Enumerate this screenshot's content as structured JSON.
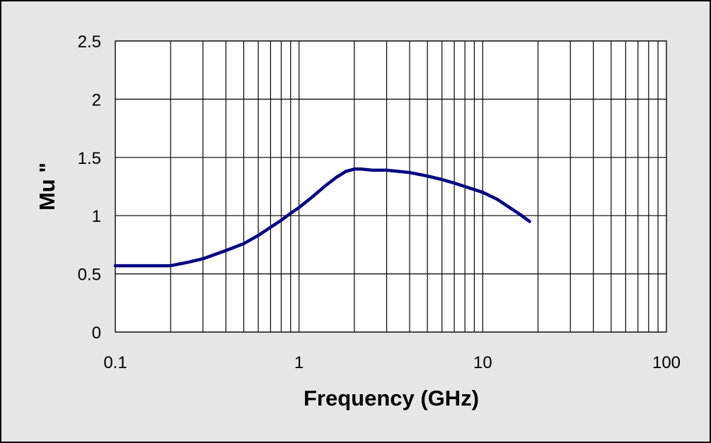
{
  "chart_data": {
    "type": "line",
    "xlabel": "Frequency (GHz)",
    "ylabel": "Mu \"",
    "x_scale": "log",
    "xlim": [
      0.1,
      100
    ],
    "ylim": [
      0,
      2.5
    ],
    "x_ticks": [
      {
        "value": 0.1,
        "label": "0.1"
      },
      {
        "value": 1,
        "label": "1"
      },
      {
        "value": 10,
        "label": "10"
      },
      {
        "value": 100,
        "label": "100"
      }
    ],
    "y_ticks": [
      {
        "value": 0,
        "label": "0"
      },
      {
        "value": 0.5,
        "label": "0.5"
      },
      {
        "value": 1,
        "label": "1"
      },
      {
        "value": 1.5,
        "label": "1.5"
      },
      {
        "value": 2,
        "label": "2"
      },
      {
        "value": 2.5,
        "label": "2.5"
      }
    ],
    "grid": true,
    "colors": {
      "series": "#000080",
      "plot_background": "#ffffff",
      "chart_background": "#e6e6e6",
      "grid": "#000000"
    },
    "series": [
      {
        "x": [
          0.1,
          0.15,
          0.2,
          0.25,
          0.3,
          0.4,
          0.5,
          0.6,
          0.7,
          0.8,
          0.9,
          1.0,
          1.2,
          1.4,
          1.6,
          1.8,
          2.0,
          2.2,
          2.5,
          3.0,
          3.5,
          4.0,
          5.0,
          6.0,
          7.0,
          8.0,
          10.0,
          12.0,
          14.0,
          16.0,
          18.0
        ],
        "y": [
          0.57,
          0.57,
          0.57,
          0.6,
          0.63,
          0.7,
          0.76,
          0.83,
          0.9,
          0.96,
          1.02,
          1.07,
          1.17,
          1.26,
          1.33,
          1.38,
          1.4,
          1.4,
          1.39,
          1.39,
          1.38,
          1.37,
          1.34,
          1.31,
          1.28,
          1.25,
          1.2,
          1.14,
          1.07,
          1.01,
          0.95
        ]
      }
    ]
  }
}
